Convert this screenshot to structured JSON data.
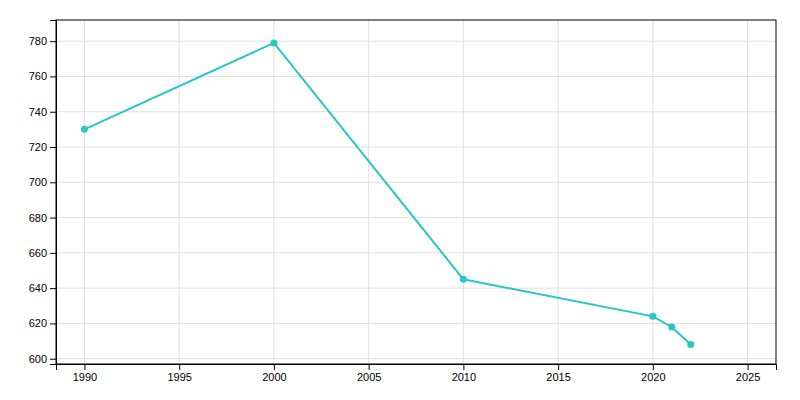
{
  "chart_data": {
    "type": "line",
    "x": [
      1990,
      2000,
      2010,
      2020,
      2021,
      2022
    ],
    "values": [
      730,
      779,
      645,
      624,
      618,
      608
    ],
    "color": "#26C6C6",
    "marker": "circle",
    "xlim": [
      1988.5,
      2026.5
    ],
    "ylim": [
      597,
      792
    ],
    "xticks": [
      1990,
      1995,
      2000,
      2005,
      2010,
      2015,
      2020,
      2025
    ],
    "yticks": [
      600,
      620,
      640,
      660,
      680,
      700,
      720,
      740,
      760,
      780
    ],
    "grid": true
  }
}
